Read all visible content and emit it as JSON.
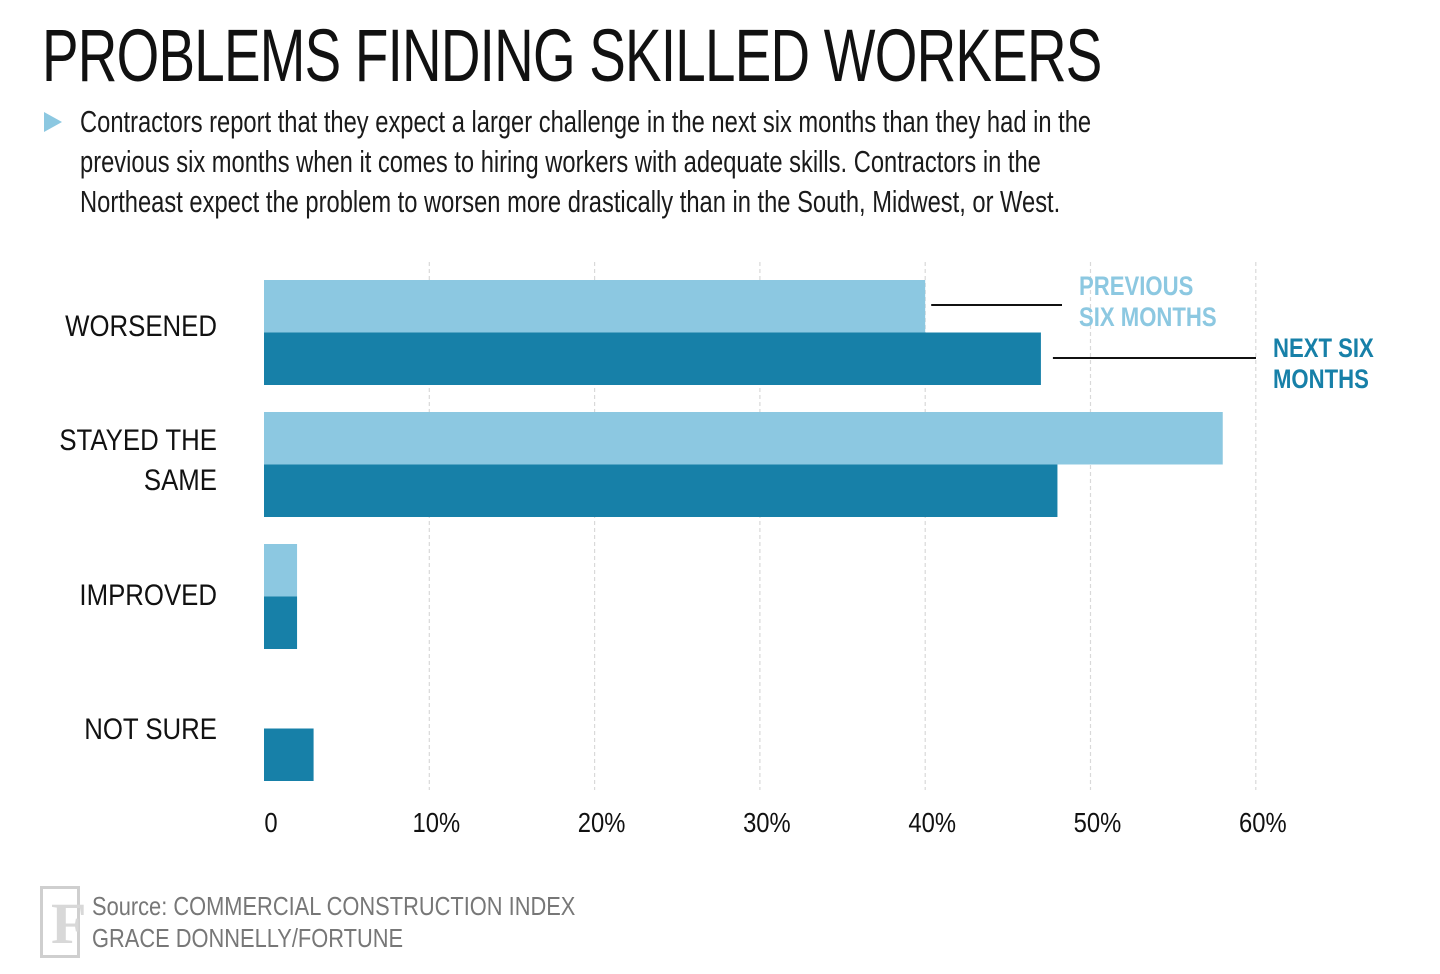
{
  "title": "PROBLEMS FINDING SKILLED WORKERS",
  "subtitle": "Contractors report that they expect a larger challenge in the next six months than they had in the previous six months when it comes to hiring workers with adequate skills. Contractors in the Northeast expect the problem to worsen more drastically than in the South, Midwest, or West.",
  "source": {
    "line1": "Source: COMMERCIAL CONSTRUCTION INDEX",
    "line2": "GRACE DONNELLY/FORTUNE",
    "logo_letter": "F"
  },
  "colors": {
    "previous": "#8cc8e1",
    "next": "#1780a8",
    "grid": "#d9d9d9",
    "bullet": "#8cc8e1"
  },
  "chart_data": {
    "type": "bar",
    "orientation": "horizontal",
    "categories": [
      "WORSENED",
      "STAYED THE SAME",
      "IMPROVED",
      "NOT SURE"
    ],
    "category_label_lines": [
      [
        "WORSENED"
      ],
      [
        "STAYED THE",
        "SAME"
      ],
      [
        "IMPROVED"
      ],
      [
        "NOT SURE"
      ]
    ],
    "series": [
      {
        "name": "PREVIOUS SIX MONTHS",
        "legend_lines": [
          "PREVIOUS",
          "SIX MONTHS"
        ],
        "color": "#8cc8e1",
        "values": [
          40,
          58,
          2,
          0
        ]
      },
      {
        "name": "NEXT SIX MONTHS",
        "legend_lines": [
          "NEXT SIX",
          "MONTHS"
        ],
        "color": "#1780a8",
        "values": [
          47,
          48,
          2,
          3
        ]
      }
    ],
    "xlim": [
      0,
      60
    ],
    "xticks": [
      0,
      10,
      20,
      30,
      40,
      50,
      60
    ],
    "xtick_labels": [
      "0",
      "10%",
      "20%",
      "30%",
      "40%",
      "50%",
      "60%"
    ],
    "grid": true,
    "legend": "inline-right",
    "xlabel": "",
    "ylabel": ""
  }
}
